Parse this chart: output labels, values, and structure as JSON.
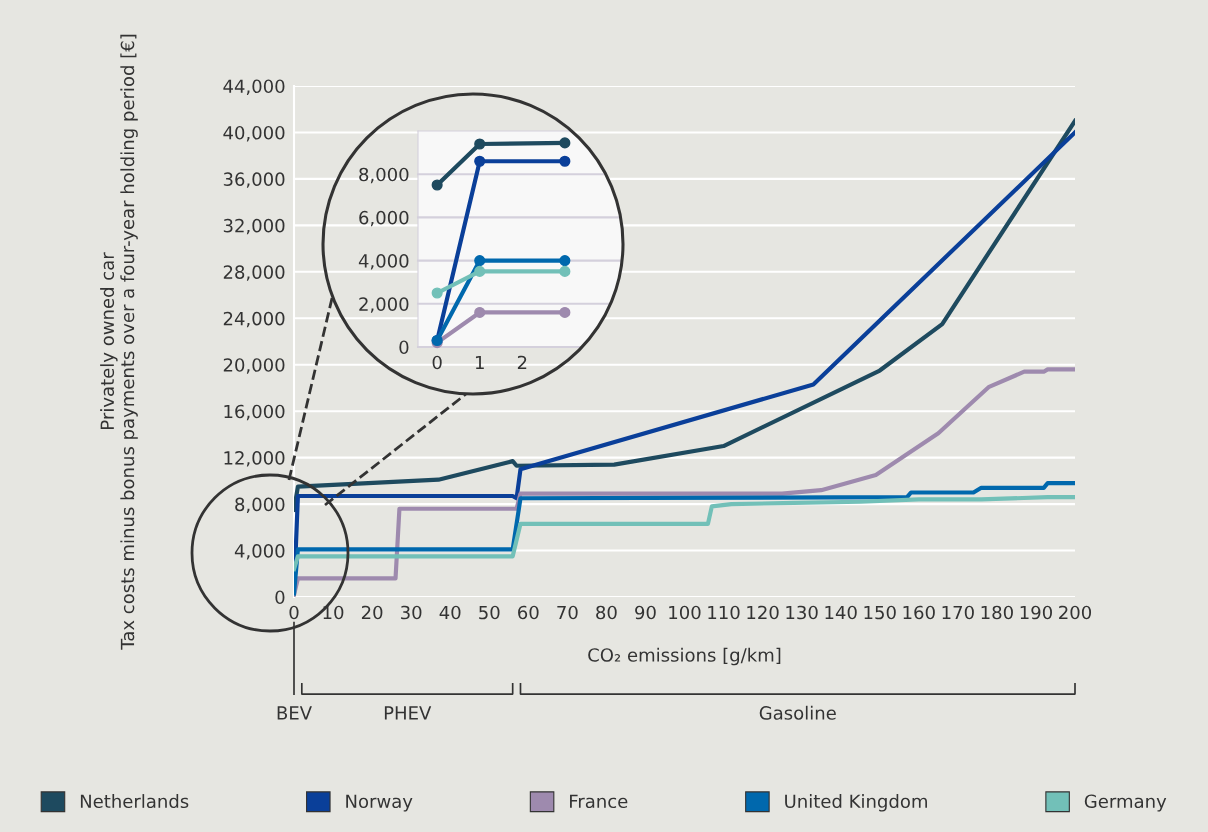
{
  "chart_data": [
    {
      "type": "line",
      "xlabel": "CO₂ emissions [g/km]",
      "ylabel": "Privately owned car\nTax costs minus bonus payments over a four-year holding period [€]",
      "xlim": [
        0,
        200
      ],
      "xticks": [
        0,
        10,
        20,
        30,
        40,
        50,
        60,
        70,
        80,
        90,
        100,
        110,
        120,
        130,
        140,
        150,
        160,
        170,
        180,
        190,
        200
      ],
      "ylim": [
        0,
        44000
      ],
      "yticks": [
        {
          "value": 0,
          "label": "0"
        },
        {
          "value": 4000,
          "label": "4,000"
        },
        {
          "value": 8000,
          "label": "8,000"
        },
        {
          "value": 12000,
          "label": "12,000"
        },
        {
          "value": 16000,
          "label": "16,000"
        },
        {
          "value": 20000,
          "label": "20,000"
        },
        {
          "value": 24000,
          "label": "24,000"
        },
        {
          "value": 28000,
          "label": "28,000"
        },
        {
          "value": 32000,
          "label": "32,000"
        },
        {
          "value": 36000,
          "label": "36,000"
        },
        {
          "value": 40000,
          "label": "40,000"
        },
        {
          "value": 44000,
          "label": "44,000"
        }
      ],
      "grid": "y",
      "legend": "bottom",
      "line_style": "solid",
      "annotations": [
        "BEV",
        "PHEV",
        "Gasoline"
      ],
      "series": [
        {
          "name": "Netherlands",
          "color": "#1e4a5f",
          "x": [
            0,
            1,
            37,
            56,
            57,
            82,
            110,
            150,
            166,
            200
          ],
          "values": [
            7500,
            9500,
            10100,
            11700,
            11300,
            11400,
            13000,
            19500,
            23500,
            41000
          ]
        },
        {
          "name": "Norway",
          "color": "#0a3f99",
          "x": [
            0,
            1,
            56,
            57,
            58,
            133,
            200
          ],
          "values": [
            300,
            8700,
            8700,
            8500,
            11000,
            18300,
            40000
          ]
        },
        {
          "name": "France",
          "color": "#9e8aae",
          "x": [
            0,
            1,
            26,
            27,
            57,
            58,
            125,
            135,
            149,
            165,
            178,
            187,
            192,
            193,
            200
          ],
          "values": [
            200,
            1600,
            1600,
            7600,
            7600,
            8900,
            8900,
            9200,
            10500,
            14100,
            18100,
            19400,
            19400,
            19600,
            19600
          ]
        },
        {
          "name": "United Kingdom",
          "color": "#0068ad",
          "x": [
            0,
            1,
            56,
            58,
            157,
            158,
            174,
            176,
            192,
            193,
            200
          ],
          "values": [
            300,
            4100,
            4100,
            8500,
            8600,
            9000,
            9000,
            9400,
            9400,
            9800,
            9800
          ]
        },
        {
          "name": "Germany",
          "color": "#72c0b8",
          "x": [
            0,
            1,
            56,
            58,
            106,
            107,
            112,
            128,
            145,
            160,
            176,
            193,
            200
          ],
          "values": [
            2400,
            3500,
            3500,
            6300,
            6300,
            7800,
            8000,
            8100,
            8200,
            8400,
            8400,
            8600,
            8600
          ]
        }
      ]
    },
    {
      "type": "line",
      "xlim": [
        -0.45,
        5
      ],
      "xticks": [
        0,
        1,
        2
      ],
      "ylim": [
        0,
        10000
      ],
      "yticks": [
        {
          "value": 0,
          "label": "0"
        },
        {
          "value": 2000,
          "label": "2,000"
        },
        {
          "value": 4000,
          "label": "4,000"
        },
        {
          "value": 6000,
          "label": "6,000"
        },
        {
          "value": 8000,
          "label": "8,000"
        }
      ],
      "grid": "y",
      "marker": "circle",
      "line_style": "solid",
      "series": [
        {
          "color": "#1e4a5f",
          "x": [
            0,
            1,
            3
          ],
          "values": [
            7500,
            9400,
            9450
          ]
        },
        {
          "color": "#0a3f99",
          "x": [
            0,
            1,
            3
          ],
          "values": [
            300,
            8600,
            8600
          ]
        },
        {
          "color": "#9e8aae",
          "x": [
            0,
            1,
            3
          ],
          "values": [
            200,
            1600,
            1600
          ]
        },
        {
          "color": "#0068ad",
          "x": [
            0,
            1,
            3
          ],
          "values": [
            300,
            4000,
            4000
          ]
        },
        {
          "color": "#72c0b8",
          "x": [
            0,
            1,
            3
          ],
          "values": [
            2500,
            3500,
            3500
          ]
        }
      ]
    }
  ]
}
